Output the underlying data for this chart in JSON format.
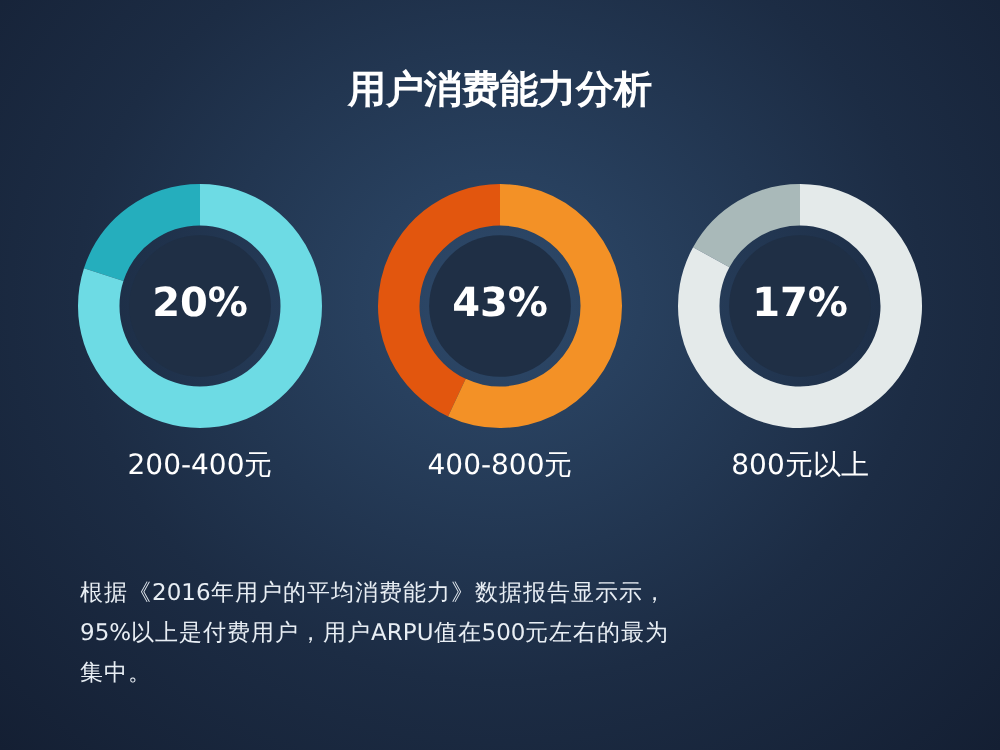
{
  "chart_data": [
    {
      "type": "other",
      "title": "用户消费能力分析"
    },
    {
      "type": "donut",
      "title": "200-400元",
      "categories": [
        null,
        null
      ],
      "values": [
        20,
        80
      ],
      "colors": [
        "#25aebd",
        "#6ddbe4"
      ],
      "value_labels": [
        "20%",
        null
      ]
    },
    {
      "type": "donut",
      "title": "400-800元",
      "categories": [
        null,
        null
      ],
      "values": [
        43,
        57
      ],
      "colors": [
        "#e2560e",
        "#f39126"
      ],
      "value_labels": [
        "43%",
        null
      ]
    },
    {
      "type": "donut",
      "title": "800元以上",
      "categories": [
        null,
        null
      ],
      "values": [
        17,
        83
      ],
      "colors": [
        "#a9b9b9",
        "#e4eaea"
      ],
      "value_labels": [
        "17%",
        null
      ]
    },
    {
      "type": "other",
      "annotations": [
        "根据《2016年用户的平均消费能力》数据报告显示示，95%以上是付费用户，用户ARPU值在500元左右的最为集中。"
      ]
    }
  ]
}
